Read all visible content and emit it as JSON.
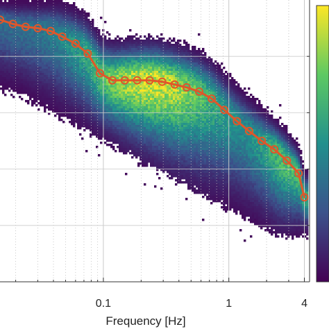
{
  "chart_data": {
    "type": "heatmap",
    "xlabel": "Frequency [Hz]",
    "x_scale": "log",
    "xlim": [
      0.015,
      4.4
    ],
    "x_ticks": [
      {
        "value": 0.1,
        "label": "0.1"
      },
      {
        "value": 1,
        "label": "1"
      },
      {
        "value": 4,
        "label": "4"
      }
    ],
    "ylim": [
      0,
      1
    ],
    "grid": true,
    "colorbar": {
      "position": "right",
      "colormap": "viridis"
    },
    "colormap": [
      "#440154",
      "#3b528b",
      "#21908d",
      "#5dc963",
      "#fde725"
    ],
    "median_color": "#e0562a",
    "series": [
      {
        "type": "line-markers",
        "x": [
          0.015,
          0.019,
          0.024,
          0.03,
          0.038,
          0.047,
          0.06,
          0.075,
          0.094,
          0.118,
          0.148,
          0.186,
          0.234,
          0.294,
          0.37,
          0.46,
          0.58,
          0.73,
          0.92,
          1.16,
          1.45,
          1.83,
          2.3,
          2.9,
          3.6,
          4.0
        ],
        "y": [
          0.93,
          0.915,
          0.905,
          0.9,
          0.89,
          0.87,
          0.845,
          0.81,
          0.74,
          0.715,
          0.715,
          0.715,
          0.715,
          0.71,
          0.7,
          0.69,
          0.675,
          0.65,
          0.61,
          0.57,
          0.535,
          0.5,
          0.47,
          0.43,
          0.385,
          0.3
        ]
      }
    ]
  }
}
